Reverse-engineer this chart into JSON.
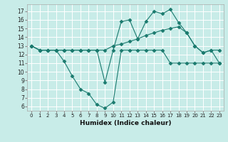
{
  "xlabel": "Humidex (Indice chaleur)",
  "background_color": "#c8ece8",
  "grid_color": "#ffffff",
  "line_color": "#1a7a6e",
  "x_ticks": [
    0,
    1,
    2,
    3,
    4,
    5,
    6,
    7,
    8,
    9,
    10,
    11,
    12,
    13,
    14,
    15,
    16,
    17,
    18,
    19,
    20,
    21,
    22,
    23
  ],
  "y_ticks": [
    6,
    7,
    8,
    9,
    10,
    11,
    12,
    13,
    14,
    15,
    16,
    17
  ],
  "ylim": [
    5.5,
    17.8
  ],
  "xlim": [
    -0.5,
    23.5
  ],
  "line1_x": [
    0,
    1,
    2,
    3,
    4,
    5,
    6,
    7,
    8,
    9,
    10,
    11,
    12,
    13,
    14,
    15,
    16,
    17,
    18,
    19,
    20,
    21,
    22,
    23
  ],
  "line1_y": [
    13.0,
    12.5,
    12.5,
    12.5,
    11.2,
    9.5,
    8.0,
    7.5,
    6.2,
    5.8,
    6.5,
    12.5,
    12.5,
    12.5,
    12.5,
    12.5,
    12.5,
    11.0,
    11.0,
    11.0,
    11.0,
    11.0,
    11.0,
    11.0
  ],
  "line2_x": [
    0,
    1,
    2,
    3,
    4,
    5,
    6,
    7,
    8,
    9,
    10,
    11,
    12,
    13,
    14,
    15,
    16,
    17,
    18,
    19,
    20,
    21,
    22,
    23
  ],
  "line2_y": [
    13.0,
    12.5,
    12.5,
    12.5,
    12.5,
    12.5,
    12.5,
    12.5,
    12.5,
    8.8,
    12.5,
    15.8,
    16.0,
    13.8,
    15.8,
    17.0,
    16.7,
    17.2,
    15.7,
    14.5,
    13.0,
    12.2,
    12.5,
    12.5
  ],
  "line3_x": [
    0,
    1,
    2,
    3,
    4,
    5,
    6,
    7,
    8,
    9,
    10,
    11,
    12,
    13,
    14,
    15,
    16,
    17,
    18,
    19,
    20,
    21,
    22,
    23
  ],
  "line3_y": [
    13.0,
    12.5,
    12.5,
    12.5,
    12.5,
    12.5,
    12.5,
    12.5,
    12.5,
    12.5,
    13.0,
    13.2,
    13.5,
    13.8,
    14.2,
    14.5,
    14.8,
    15.0,
    15.2,
    14.5,
    13.0,
    12.2,
    12.5,
    11.0
  ]
}
